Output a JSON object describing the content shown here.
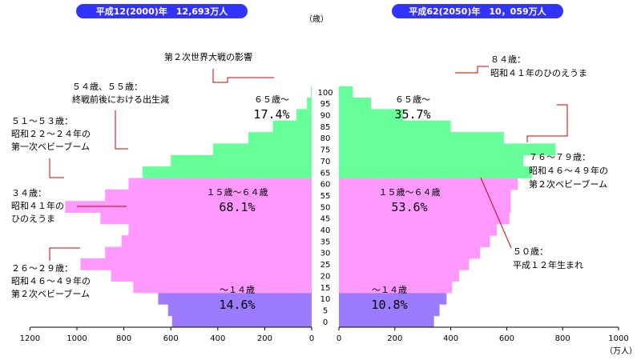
{
  "chart_data": [
    {
      "type": "bar",
      "orientation": "horizontal",
      "title": "平成12(2000)年　12,693万人",
      "age_unit_label": "（歳）",
      "x_unit_label": "（万人）",
      "xlim": [
        0,
        1200
      ],
      "x_direction": "right-to-left",
      "x_ticks": [
        "1200",
        "1000",
        "800",
        "600",
        "400",
        "200",
        "0"
      ],
      "age_ticks": [
        "100",
        "95",
        "90",
        "85",
        "80",
        "75",
        "70",
        "65",
        "60",
        "55",
        "50",
        "45",
        "40",
        "35",
        "30",
        "25",
        "20",
        "15",
        "10",
        "5",
        "0"
      ],
      "age_groups": [
        "0-4",
        "5-9",
        "10-14",
        "15-19",
        "20-24",
        "25-29",
        "30-34",
        "35-39",
        "40-44",
        "45-49",
        "50-54",
        "55-59",
        "60-64",
        "65-69",
        "70-74",
        "75-79",
        "80-84",
        "85-89",
        "90-94",
        "95-99",
        "100+"
      ],
      "values": [
        595,
        612,
        654,
        760,
        855,
        985,
        880,
        810,
        780,
        900,
        1050,
        880,
        780,
        720,
        600,
        420,
        270,
        165,
        65,
        20,
        3
      ],
      "bands": [
        {
          "label": "〜１４歳",
          "share": "14.6%",
          "ages": "0-14",
          "color": "#9c7bff"
        },
        {
          "label": "１５歳〜６４歳",
          "share": "68.1%",
          "ages": "15-64",
          "color": "#ff99ff"
        },
        {
          "label": "６５歳〜",
          "share": "17.4%",
          "ages": "65+",
          "color": "#66ff99"
        }
      ],
      "annotations": [
        "第２次世界大戦の影響",
        "５４歳、５５歳：\n終戦前後における出生減",
        "５１〜５３歳：\n昭和２２〜２４年の\n第一次ベビーブーム",
        "３４歳：\n昭和４１年の\nひのえうま",
        "２６〜２９歳：\n昭和４６〜４９年の\n第２次ベビーブーム"
      ]
    },
    {
      "type": "bar",
      "orientation": "horizontal",
      "title": "平成62(2050)年　10，059万人",
      "x_unit_label": "（万人）",
      "xlim": [
        0,
        1000
      ],
      "x_direction": "left-to-right",
      "x_ticks": [
        "0",
        "200",
        "400",
        "600",
        "800",
        "1000"
      ],
      "age_groups": [
        "0-4",
        "5-9",
        "10-14",
        "15-19",
        "20-24",
        "25-29",
        "30-34",
        "35-39",
        "40-44",
        "45-49",
        "50-54",
        "55-59",
        "60-64",
        "65-69",
        "70-74",
        "75-79",
        "80-84",
        "85-89",
        "90-94",
        "95-99",
        "100+"
      ],
      "values": [
        340,
        360,
        385,
        405,
        430,
        465,
        505,
        540,
        565,
        610,
        615,
        615,
        640,
        690,
        660,
        775,
        590,
        400,
        230,
        115,
        50
      ],
      "bands": [
        {
          "label": "〜１４歳",
          "share": "10.8%",
          "ages": "0-14",
          "color": "#9c7bff"
        },
        {
          "label": "１５歳〜６４歳",
          "share": "53.6%",
          "ages": "15-64",
          "color": "#ff99ff"
        },
        {
          "label": "６５歳〜",
          "share": "35.7%",
          "ages": "65+",
          "color": "#66ff99"
        }
      ],
      "annotations": [
        "８４歳：\n昭和４１年のひのえうま",
        "７６〜７９歳：\n昭和４６〜４９年の\n第２次ベビーブーム",
        "５０歳：\n平成１２年生まれ"
      ]
    }
  ]
}
